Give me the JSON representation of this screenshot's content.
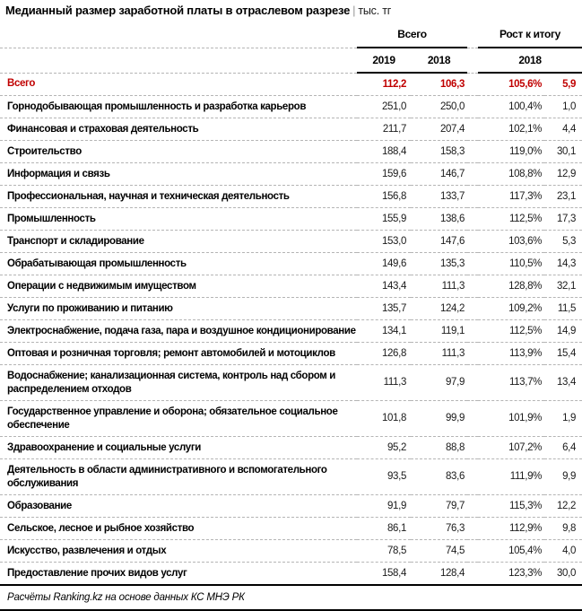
{
  "title": {
    "main": "Медианный размер заработной платы в отраслевом разрезе",
    "separator": "|",
    "unit": "тыс. тг"
  },
  "header": {
    "group_total": "Всего",
    "group_growth": "Рост к итогу",
    "year_2019": "2019",
    "year_2018": "2018",
    "growth_year": "2018"
  },
  "colors": {
    "accent_red": "#C00000",
    "line_black": "#000000",
    "dashed_gray": "#B5B5B5"
  },
  "footer": {
    "source": "Расчёты Ranking.kz на основе данных КС МНЭ РК"
  },
  "chart_data": {
    "type": "table",
    "title": "Медианный размер заработной платы в отраслевом разрезе",
    "unit": "тыс. тг",
    "column_groups": [
      {
        "label": "Всего",
        "columns": [
          "2019",
          "2018"
        ]
      },
      {
        "label": "Рост к итогу",
        "columns": [
          "2018"
        ]
      }
    ],
    "total_row": {
      "label": "Всего",
      "salary_2019": "112,2",
      "salary_2018": "106,3",
      "growth_pct_2018": "105,6%",
      "growth_abs_2018": "5,9"
    },
    "rows": [
      {
        "label": "Горнодобывающая промышленность и разработка карьеров",
        "salary_2019": "251,0",
        "salary_2018": "250,0",
        "growth_pct_2018": "100,4%",
        "growth_abs_2018": "1,0"
      },
      {
        "label": "Финансовая и страховая деятельность",
        "salary_2019": "211,7",
        "salary_2018": "207,4",
        "growth_pct_2018": "102,1%",
        "growth_abs_2018": "4,4"
      },
      {
        "label": "Строительство",
        "salary_2019": "188,4",
        "salary_2018": "158,3",
        "growth_pct_2018": "119,0%",
        "growth_abs_2018": "30,1"
      },
      {
        "label": "Информация и связь",
        "salary_2019": "159,6",
        "salary_2018": "146,7",
        "growth_pct_2018": "108,8%",
        "growth_abs_2018": "12,9"
      },
      {
        "label": "Профессиональная, научная и техническая деятельность",
        "salary_2019": "156,8",
        "salary_2018": "133,7",
        "growth_pct_2018": "117,3%",
        "growth_abs_2018": "23,1"
      },
      {
        "label": "Промышленность",
        "salary_2019": "155,9",
        "salary_2018": "138,6",
        "growth_pct_2018": "112,5%",
        "growth_abs_2018": "17,3"
      },
      {
        "label": "Транспорт и складирование",
        "salary_2019": "153,0",
        "salary_2018": "147,6",
        "growth_pct_2018": "103,6%",
        "growth_abs_2018": "5,3"
      },
      {
        "label": "Обрабатывающая промышленность",
        "salary_2019": "149,6",
        "salary_2018": "135,3",
        "growth_pct_2018": "110,5%",
        "growth_abs_2018": "14,3"
      },
      {
        "label": "Операции с недвижимым имуществом",
        "salary_2019": "143,4",
        "salary_2018": "111,3",
        "growth_pct_2018": "128,8%",
        "growth_abs_2018": "32,1"
      },
      {
        "label": "Услуги по проживанию и питанию",
        "salary_2019": "135,7",
        "salary_2018": "124,2",
        "growth_pct_2018": "109,2%",
        "growth_abs_2018": "11,5"
      },
      {
        "label": "Электроснабжение, подача газа, пара и воздушное кондиционирование",
        "salary_2019": "134,1",
        "salary_2018": "119,1",
        "growth_pct_2018": "112,5%",
        "growth_abs_2018": "14,9"
      },
      {
        "label": "Оптовая и розничная торговля; ремонт автомобилей и мотоциклов",
        "salary_2019": "126,8",
        "salary_2018": "111,3",
        "growth_pct_2018": "113,9%",
        "growth_abs_2018": "15,4"
      },
      {
        "label": "Водоснабжение; канализационная система, контроль над сбором и распределением отходов",
        "salary_2019": "111,3",
        "salary_2018": "97,9",
        "growth_pct_2018": "113,7%",
        "growth_abs_2018": "13,4"
      },
      {
        "label": "Государственное управление и оборона; обязательное социальное обеспечение",
        "salary_2019": "101,8",
        "salary_2018": "99,9",
        "growth_pct_2018": "101,9%",
        "growth_abs_2018": "1,9"
      },
      {
        "label": "Здравоохранение и социальные услуги",
        "salary_2019": "95,2",
        "salary_2018": "88,8",
        "growth_pct_2018": "107,2%",
        "growth_abs_2018": "6,4"
      },
      {
        "label": "Деятельность в области административного и вспомогательного обслуживания",
        "salary_2019": "93,5",
        "salary_2018": "83,6",
        "growth_pct_2018": "111,9%",
        "growth_abs_2018": "9,9"
      },
      {
        "label": "Образование",
        "salary_2019": "91,9",
        "salary_2018": "79,7",
        "growth_pct_2018": "115,3%",
        "growth_abs_2018": "12,2"
      },
      {
        "label": "Сельское, лесное и рыбное хозяйство",
        "salary_2019": "86,1",
        "salary_2018": "76,3",
        "growth_pct_2018": "112,9%",
        "growth_abs_2018": "9,8"
      },
      {
        "label": "Искусство, развлечения и отдых",
        "salary_2019": "78,5",
        "salary_2018": "74,5",
        "growth_pct_2018": "105,4%",
        "growth_abs_2018": "4,0"
      },
      {
        "label": "Предоставление прочих видов услуг",
        "salary_2019": "158,4",
        "salary_2018": "128,4",
        "growth_pct_2018": "123,3%",
        "growth_abs_2018": "30,0"
      }
    ]
  }
}
